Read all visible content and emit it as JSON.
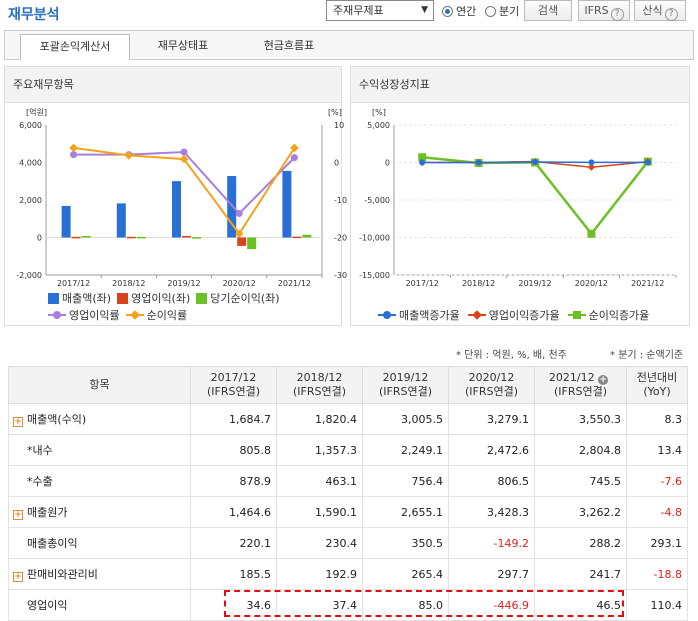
{
  "header": {
    "title": "재무분석",
    "report_select": "주재무제표",
    "period_options": [
      "연간",
      "분기"
    ],
    "period_selected": "연간",
    "search_label": "검색",
    "ifrs_label": "IFRS",
    "formula_label": "산식"
  },
  "tabs": [
    "포괄손익계산서",
    "재무상태표",
    "현금흐름표"
  ],
  "left_chart": {
    "title": "주요재무항목",
    "left_unit": "[억원]",
    "right_unit": "[%]",
    "legend": [
      "매출액(좌)",
      "영업이익(좌)",
      "당기순이익(좌)",
      "영업이익률",
      "순이익률"
    ]
  },
  "right_chart": {
    "title": "수익성장성지표",
    "right_unit": "[%]",
    "legend": [
      "매출액증가율",
      "영업이익증가율",
      "순이익증가율"
    ]
  },
  "colors": {
    "sales": "#2a6fd6",
    "op_income": "#d9441c",
    "net_income": "#6cc024",
    "op_margin": "#a67fe0",
    "net_margin": "#f5a21b",
    "negative": "#e02020",
    "highlight": "#e01010"
  },
  "chart_data": [
    {
      "type": "bar",
      "title": "주요재무항목",
      "categories": [
        "2017/12",
        "2018/12",
        "2019/12",
        "2020/12",
        "2021/12"
      ],
      "ylim": [
        -2000,
        6000
      ],
      "y_ticks": [
        "6,000",
        "4,000",
        "2,000",
        "0",
        "-2,000"
      ],
      "y2lim": [
        -30,
        10
      ],
      "y2_ticks": [
        "10",
        "0",
        "-10",
        "-20",
        "-30"
      ],
      "series": [
        {
          "name": "매출액(좌)",
          "type": "bar",
          "axis": "left",
          "values": [
            1684.7,
            1820.4,
            3005.5,
            3279.1,
            3550.3
          ]
        },
        {
          "name": "영업이익(좌)",
          "type": "bar",
          "axis": "left",
          "values": [
            34.6,
            37.4,
            85.0,
            -446.9,
            46.5
          ]
        },
        {
          "name": "당기순이익(좌)",
          "type": "bar",
          "axis": "left",
          "values": [
            79,
            34,
            20,
            -620,
            145
          ]
        },
        {
          "name": "영업이익률",
          "type": "line",
          "axis": "right",
          "values": [
            2.1,
            2.1,
            2.8,
            -13.6,
            1.3
          ]
        },
        {
          "name": "순이익률",
          "type": "line",
          "axis": "right",
          "values": [
            3.9,
            1.9,
            0.9,
            -19.0,
            3.9
          ]
        }
      ]
    },
    {
      "type": "line",
      "title": "수익성장성지표",
      "categories": [
        "2017/12",
        "2018/12",
        "2019/12",
        "2020/12",
        "2021/12"
      ],
      "ylim": [
        -15000,
        5000
      ],
      "y_ticks": [
        "5,000",
        "0",
        "-5,000",
        "-10,000",
        "-15,000"
      ],
      "series": [
        {
          "name": "매출액증가율",
          "values": [
            0,
            8.1,
            65.1,
            9.1,
            8.3
          ]
        },
        {
          "name": "영업이익증가율",
          "values": [
            0,
            8.1,
            127.3,
            -625.8,
            110.4
          ]
        },
        {
          "name": "순이익증가율",
          "values": [
            700,
            -60,
            10,
            -9500,
            120
          ]
        }
      ]
    }
  ],
  "notes": {
    "unit": "* 단위 : 억원, %, 배, 천주",
    "quarter": "* 분기 : 순액기준"
  },
  "table": {
    "item_header": "항목",
    "columns": [
      {
        "year": "2017/12",
        "basis": "(IFRS연결)"
      },
      {
        "year": "2018/12",
        "basis": "(IFRS연결)"
      },
      {
        "year": "2019/12",
        "basis": "(IFRS연결)"
      },
      {
        "year": "2020/12",
        "basis": "(IFRS연결)"
      },
      {
        "year": "2021/12",
        "basis": "(IFRS연결)"
      }
    ],
    "yoy_header": [
      "전년대비",
      "(YoY)"
    ],
    "rows": [
      {
        "label": "매출액(수익)",
        "expand": true,
        "values": [
          "1,684.7",
          "1,820.4",
          "3,005.5",
          "3,279.1",
          "3,550.3"
        ],
        "yoy": "8.3"
      },
      {
        "label": "*내수",
        "expand": false,
        "values": [
          "805.8",
          "1,357.3",
          "2,249.1",
          "2,472.6",
          "2,804.8"
        ],
        "yoy": "13.4"
      },
      {
        "label": "*수출",
        "expand": false,
        "values": [
          "878.9",
          "463.1",
          "756.4",
          "806.5",
          "745.5"
        ],
        "yoy": "-7.6"
      },
      {
        "label": "매출원가",
        "expand": true,
        "values": [
          "1,464.6",
          "1,590.1",
          "2,655.1",
          "3,428.3",
          "3,262.2"
        ],
        "yoy": "-4.8"
      },
      {
        "label": "매출총이익",
        "expand": false,
        "values": [
          "220.1",
          "230.4",
          "350.5",
          "-149.2",
          "288.2"
        ],
        "yoy": "293.1"
      },
      {
        "label": "판매비와관리비",
        "expand": true,
        "values": [
          "185.5",
          "192.9",
          "265.4",
          "297.7",
          "241.7"
        ],
        "yoy": "-18.8"
      },
      {
        "label": "영업이익",
        "expand": false,
        "values": [
          "34.6",
          "37.4",
          "85.0",
          "-446.9",
          "46.5"
        ],
        "yoy": "110.4"
      }
    ]
  }
}
